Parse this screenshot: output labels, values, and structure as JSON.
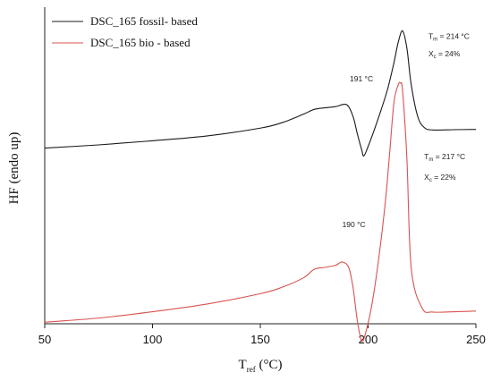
{
  "chart_data": {
    "type": "line",
    "xlabel": {
      "main": "T",
      "sub": "ref",
      "rest": " (°C)"
    },
    "ylabel": "HF (endo up)",
    "xlim": [
      50,
      250
    ],
    "ylim": [
      0,
      10
    ],
    "x_ticks": [
      "50",
      "100",
      "150",
      "200",
      "250"
    ],
    "legend_position": "top-left",
    "series": [
      {
        "name": "DSC_165 fossil- based",
        "color": "#1a1a1a",
        "x": [
          50,
          75,
          100,
          125,
          150,
          160,
          170,
          175,
          180,
          185,
          190,
          193,
          195,
          197,
          198,
          200,
          203,
          206,
          209,
          212,
          214,
          216,
          218,
          220,
          223,
          226,
          230,
          240,
          250
        ],
        "y": [
          5.55,
          5.65,
          5.78,
          5.93,
          6.18,
          6.35,
          6.62,
          6.77,
          6.82,
          6.86,
          6.92,
          6.55,
          6.0,
          5.5,
          5.3,
          5.6,
          6.15,
          6.75,
          7.4,
          8.25,
          8.9,
          9.25,
          8.7,
          7.55,
          6.55,
          6.2,
          6.12,
          6.13,
          6.14
        ]
      },
      {
        "name": "DSC_165 bio - based",
        "color": "#d9534f",
        "x": [
          50,
          75,
          100,
          125,
          150,
          160,
          170,
          175,
          180,
          185,
          188,
          191,
          193,
          195,
          197,
          199,
          202,
          205,
          208,
          210,
          212,
          214,
          215,
          216,
          218,
          220,
          225,
          230,
          240,
          250
        ],
        "y": [
          0.05,
          0.18,
          0.38,
          0.62,
          0.95,
          1.15,
          1.45,
          1.72,
          1.78,
          1.85,
          1.95,
          1.78,
          1.15,
          0.1,
          -0.55,
          -0.25,
          0.7,
          2.1,
          3.85,
          5.4,
          7.0,
          7.55,
          7.6,
          7.35,
          5.2,
          1.75,
          0.5,
          0.37,
          0.38,
          0.4
        ]
      }
    ],
    "annotations": [
      {
        "id": "fossil-peak-small",
        "text": "191 °C",
        "x": 191.5,
        "y": 7.65
      },
      {
        "id": "fossil-tm",
        "text": "Tm = 214 °C",
        "main": "T",
        "sub": "m",
        "rest": " = 214 °C",
        "x": 228,
        "y": 9.0
      },
      {
        "id": "fossil-xc",
        "text": "Xc = 24%",
        "main": "X",
        "sub": "c",
        "rest": " = 24%",
        "x": 228,
        "y": 8.45
      },
      {
        "id": "bio-peak-small",
        "text": "190 °C",
        "x": 188,
        "y": 3.05
      },
      {
        "id": "bio-tm",
        "text": "Tm = 217 °C",
        "main": "T",
        "sub": "m",
        "rest": " = 217 °C",
        "x": 226,
        "y": 5.2
      },
      {
        "id": "bio-xc",
        "text": "Xc = 22%",
        "main": "X",
        "sub": "c",
        "rest": " = 22%",
        "x": 226,
        "y": 4.55
      }
    ]
  }
}
